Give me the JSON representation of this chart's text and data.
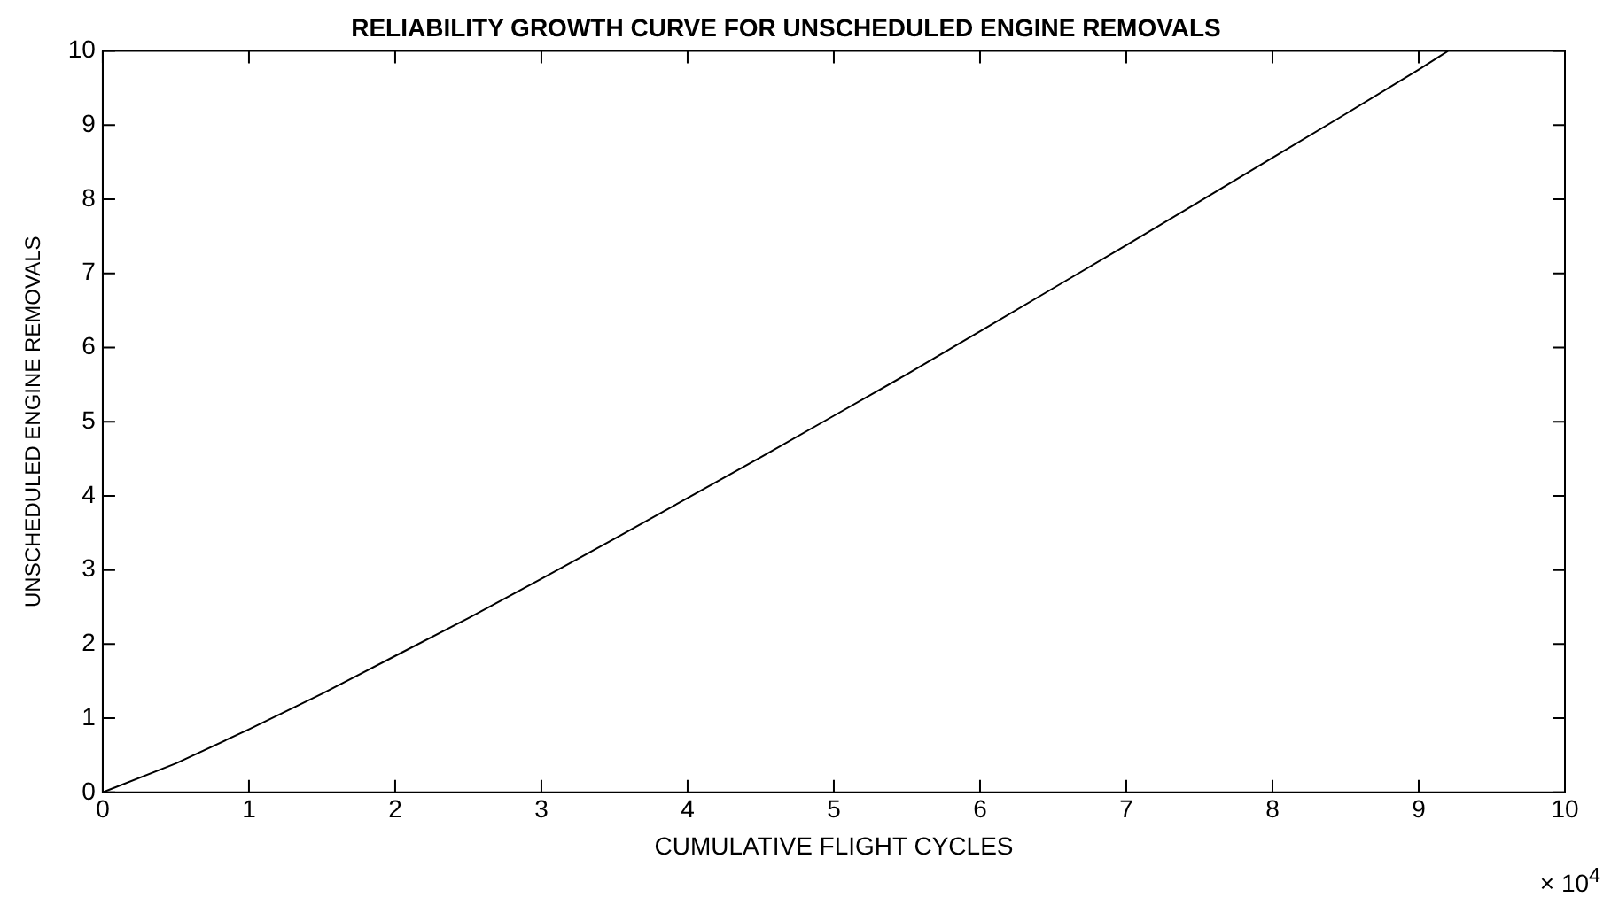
{
  "chart_data": {
    "type": "line",
    "title": "RELIABILITY GROWTH CURVE FOR UNSCHEDULED ENGINE REMOVALS",
    "xlabel": "CUMULATIVE FLIGHT CYCLES",
    "ylabel": "UNSCHEDULED ENGINE REMOVALS",
    "x": [
      0,
      0.5,
      1,
      1.5,
      2,
      2.5,
      3,
      3.5,
      4,
      4.5,
      5,
      5.5,
      6,
      6.5,
      7,
      7.5,
      8,
      8.5,
      9,
      9.2
    ],
    "series": [
      {
        "color": "#000000",
        "values": [
          0,
          0.39,
          0.85,
          1.33,
          1.84,
          2.35,
          2.88,
          3.42,
          3.97,
          4.52,
          5.08,
          5.64,
          6.22,
          6.8,
          7.38,
          7.97,
          8.56,
          9.15,
          9.75,
          10
        ]
      }
    ],
    "xlim": [
      0,
      10
    ],
    "xticks": [
      0,
      1,
      2,
      3,
      4,
      5,
      6,
      7,
      8,
      9,
      10
    ],
    "ylim": [
      0,
      10
    ],
    "yticks": [
      0,
      1,
      2,
      3,
      4,
      5,
      6,
      7,
      8,
      9,
      10
    ],
    "annotations": [
      "× 10$^{4}$"
    ],
    "grid": false,
    "legend": false,
    "marker": "none",
    "line_style": "solid"
  }
}
